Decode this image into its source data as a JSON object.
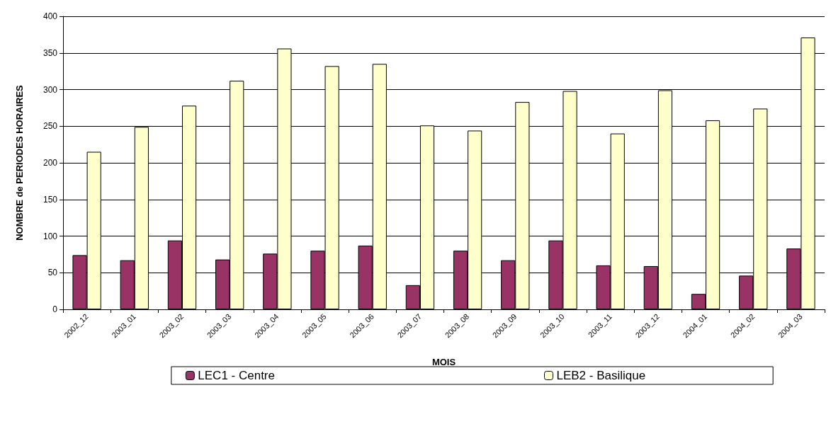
{
  "chart_data": {
    "type": "bar",
    "xlabel": "MOIS",
    "ylabel": "NOMBRE de PERIODES HORAIRES",
    "categories": [
      "2002_12",
      "2003_01",
      "2003_02",
      "2003_03",
      "2003_04",
      "2003_05",
      "2003_06",
      "2003_07",
      "2003_08",
      "2003_09",
      "2003_10",
      "2003_11",
      "2003_12",
      "2004_01",
      "2004_02",
      "2004_03"
    ],
    "series": [
      {
        "name": "LEC1 - Centre",
        "color": "#993366",
        "values": [
          74,
          67,
          94,
          68,
          76,
          80,
          87,
          33,
          80,
          67,
          94,
          60,
          59,
          21,
          46,
          83
        ]
      },
      {
        "name": "LEB2 - Basilique",
        "color": "#ffffcc",
        "values": [
          215,
          249,
          278,
          312,
          356,
          332,
          335,
          251,
          244,
          283,
          298,
          240,
          299,
          258,
          274,
          371
        ]
      }
    ],
    "ylim": [
      0,
      400
    ],
    "yticks": [
      0,
      50,
      100,
      150,
      200,
      250,
      300,
      350,
      400
    ],
    "grid": "y",
    "legend": "bottom"
  }
}
